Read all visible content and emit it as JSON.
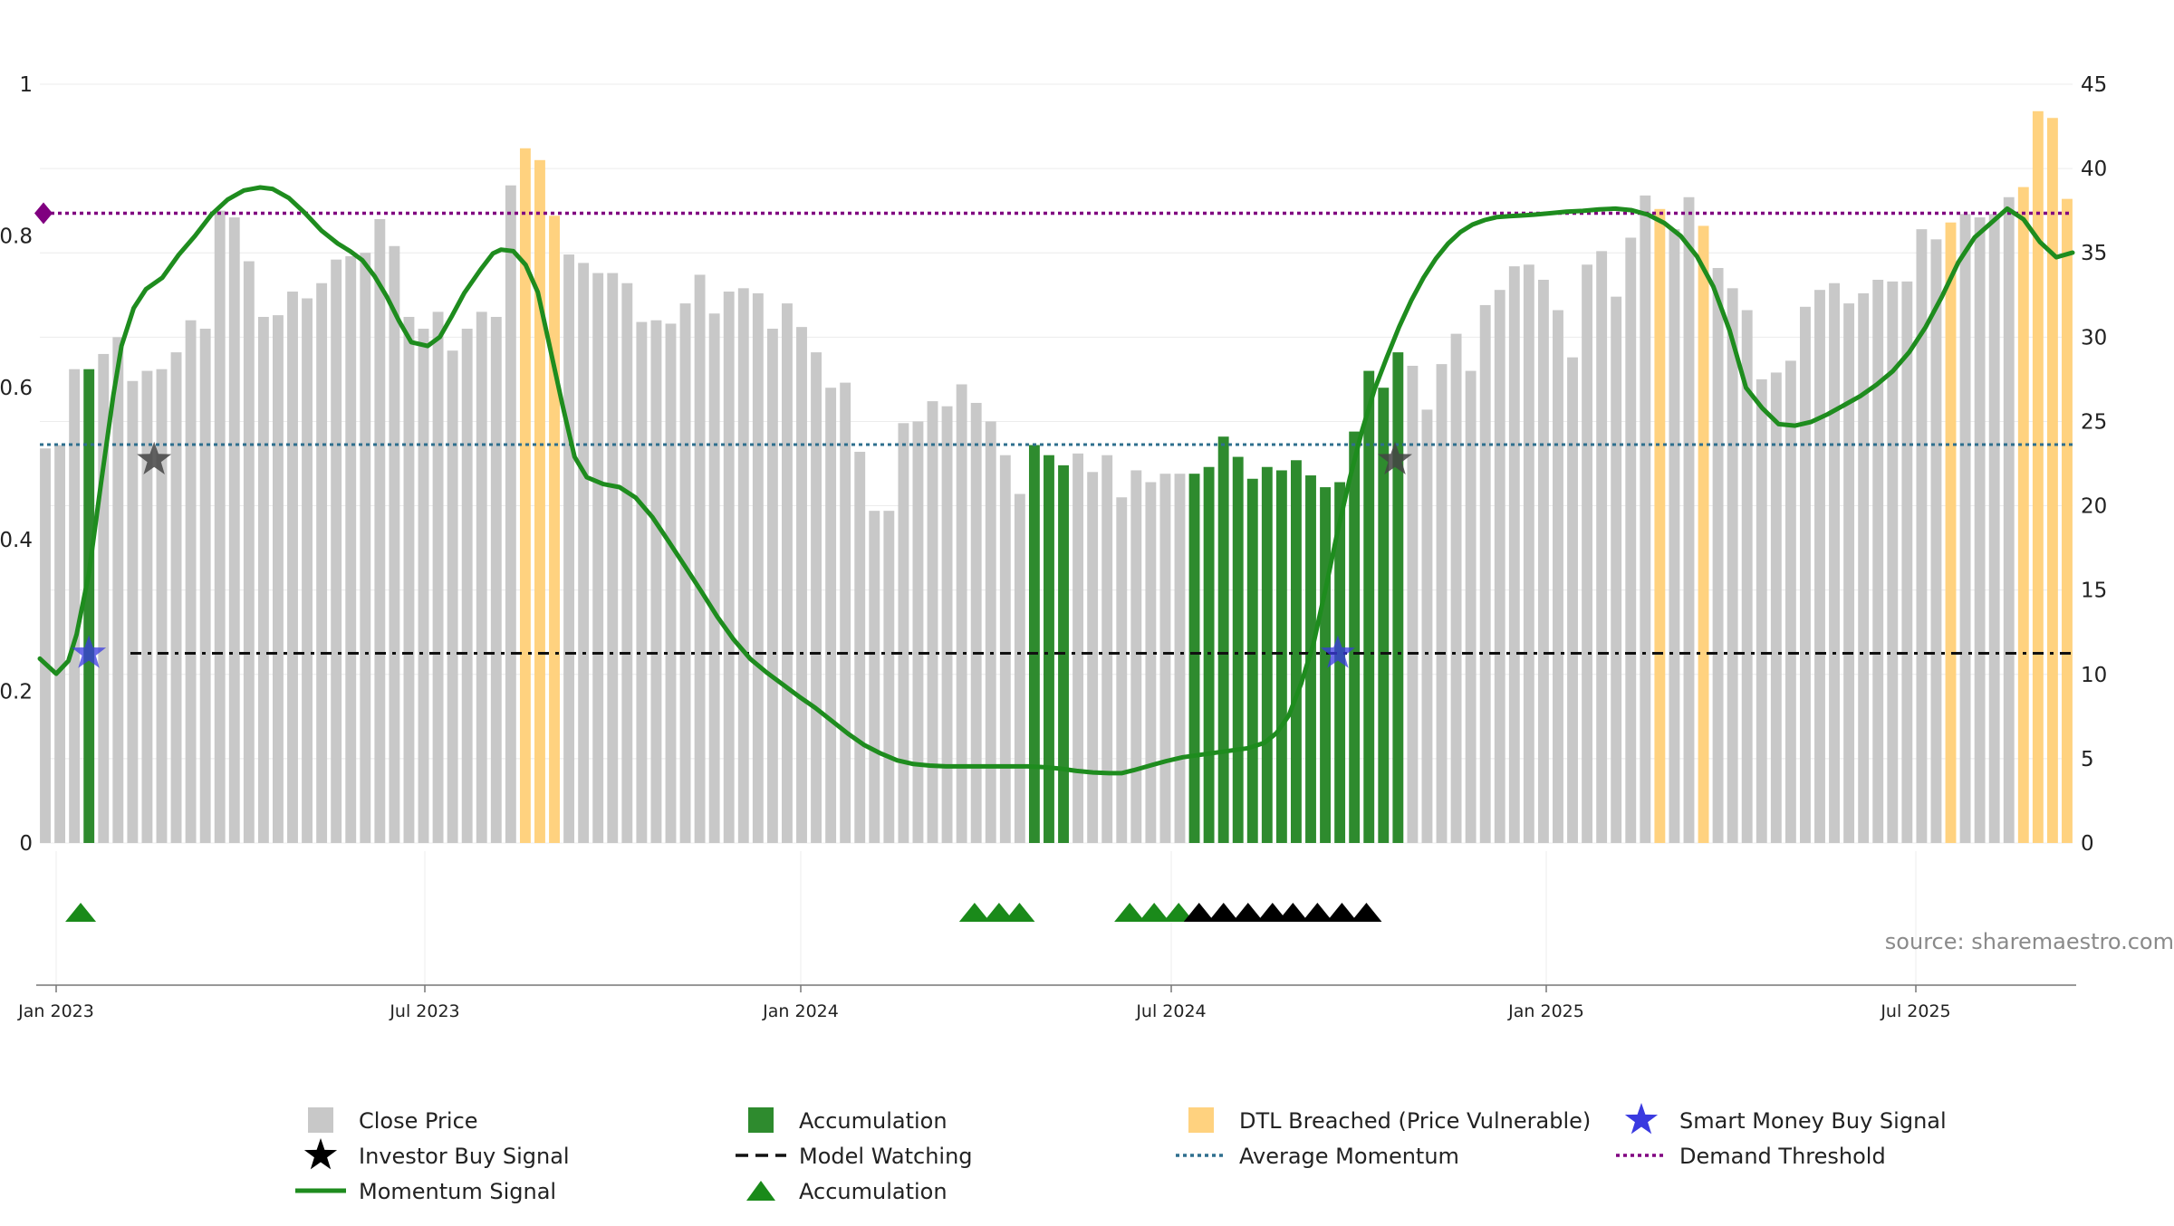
{
  "source_text": "source: sharemaestro.com",
  "colors": {
    "close": "#c8c8c8",
    "accumulation": "#2e8b2e",
    "dtl": "#ffd27f",
    "momentum": "#1e8c1e",
    "demand": "#800080",
    "average": "#2e6f8e",
    "model": "#111111",
    "smart_money": "#3a3ae0",
    "investor": "#444444",
    "triangle_green": "#1a8a1a",
    "triangle_black": "#000000"
  },
  "chart_data": {
    "type": "bar",
    "left_axis": {
      "ticks": [
        "0",
        "0.2",
        "0.4",
        "0.6",
        "0.8",
        "1"
      ],
      "range": [
        0,
        1
      ]
    },
    "right_axis": {
      "ticks": [
        "0",
        "5",
        "10",
        "15",
        "20",
        "25",
        "30",
        "35",
        "40",
        "45"
      ],
      "range": [
        0,
        45
      ]
    },
    "x_ticks": [
      "Jan 2023",
      "Jul 2023",
      "Jan 2024",
      "Jul 2024",
      "Jan 2025",
      "Jul 2025"
    ],
    "bar_values": [
      23.4,
      23.6,
      28.1,
      28.1,
      29.0,
      30.0,
      27.4,
      28.0,
      28.1,
      29.1,
      31.0,
      30.5,
      37.5,
      37.1,
      34.5,
      31.2,
      31.3,
      32.7,
      32.3,
      33.2,
      34.6,
      34.8,
      35.0,
      37.0,
      35.4,
      31.2,
      30.5,
      31.5,
      29.2,
      30.5,
      31.5,
      31.2,
      39.0,
      41.2,
      40.5,
      37.2,
      34.9,
      34.4,
      33.8,
      33.8,
      33.2,
      30.9,
      31.0,
      30.8,
      32.0,
      33.7,
      31.4,
      32.7,
      32.9,
      32.6,
      30.5,
      32.0,
      30.6,
      29.1,
      27.0,
      27.3,
      23.2,
      19.7,
      19.7,
      24.9,
      25.0,
      26.2,
      25.9,
      27.2,
      26.1,
      25.0,
      23.0,
      20.7,
      23.6,
      23.0,
      22.4,
      23.1,
      22.0,
      23.0,
      20.5,
      22.1,
      21.4,
      21.9,
      21.9,
      21.9,
      22.3,
      24.1,
      22.9,
      21.6,
      22.3,
      22.1,
      22.7,
      21.8,
      21.1,
      21.4,
      24.4,
      28.0,
      27.0,
      29.1,
      28.3,
      25.7,
      28.4,
      30.2,
      28.0,
      31.9,
      32.8,
      34.2,
      34.3,
      33.4,
      31.6,
      28.8,
      34.3,
      35.1,
      32.4,
      35.9,
      38.4,
      37.6,
      36.4,
      38.3,
      36.6,
      34.1,
      32.9,
      31.6,
      27.5,
      27.9,
      28.6,
      31.8,
      32.8,
      33.2,
      32.0,
      32.6,
      33.4,
      33.3,
      33.3,
      36.4,
      35.8,
      36.8,
      37.3,
      37.1,
      37.3,
      38.3,
      38.9,
      43.4,
      43.0,
      38.2
    ],
    "bar_category_by_index": {
      "accumulation": [
        3,
        68,
        69,
        70,
        79,
        80,
        81,
        82,
        83,
        84,
        85,
        86,
        87,
        88,
        89,
        90,
        91,
        92,
        93
      ],
      "dtl_breached": [
        33,
        34,
        35,
        111,
        114,
        131,
        136,
        137,
        138,
        139,
        140
      ]
    },
    "momentum": [
      [
        0,
        0.243
      ],
      [
        4,
        0.223
      ],
      [
        7,
        0.24
      ],
      [
        9,
        0.275
      ],
      [
        12,
        0.355
      ],
      [
        15,
        0.475
      ],
      [
        18,
        0.59
      ],
      [
        20,
        0.655
      ],
      [
        23,
        0.705
      ],
      [
        26,
        0.73
      ],
      [
        30,
        0.745
      ],
      [
        34,
        0.775
      ],
      [
        38,
        0.8
      ],
      [
        42,
        0.828
      ],
      [
        46,
        0.848
      ],
      [
        50,
        0.86
      ],
      [
        54,
        0.864
      ],
      [
        57,
        0.862
      ],
      [
        61,
        0.85
      ],
      [
        65,
        0.83
      ],
      [
        69,
        0.807
      ],
      [
        73,
        0.79
      ],
      [
        76,
        0.78
      ],
      [
        79,
        0.768
      ],
      [
        82,
        0.747
      ],
      [
        85,
        0.72
      ],
      [
        88,
        0.688
      ],
      [
        91,
        0.66
      ],
      [
        95,
        0.655
      ],
      [
        98,
        0.667
      ],
      [
        101,
        0.695
      ],
      [
        104,
        0.725
      ],
      [
        108,
        0.756
      ],
      [
        111,
        0.777
      ],
      [
        113,
        0.782
      ],
      [
        116,
        0.78
      ],
      [
        119,
        0.762
      ],
      [
        122,
        0.726
      ],
      [
        125,
        0.652
      ],
      [
        128,
        0.578
      ],
      [
        131,
        0.509
      ],
      [
        134,
        0.482
      ],
      [
        138,
        0.473
      ],
      [
        142,
        0.469
      ],
      [
        146,
        0.455
      ],
      [
        150,
        0.43
      ],
      [
        154,
        0.398
      ],
      [
        158,
        0.365
      ],
      [
        162,
        0.332
      ],
      [
        166,
        0.298
      ],
      [
        170,
        0.268
      ],
      [
        174,
        0.243
      ],
      [
        178,
        0.225
      ],
      [
        182,
        0.209
      ],
      [
        186,
        0.193
      ],
      [
        190,
        0.178
      ],
      [
        194,
        0.161
      ],
      [
        198,
        0.144
      ],
      [
        202,
        0.129
      ],
      [
        206,
        0.118
      ],
      [
        210,
        0.109
      ],
      [
        214,
        0.104
      ],
      [
        218,
        0.102
      ],
      [
        222,
        0.101
      ],
      [
        226,
        0.101
      ],
      [
        230,
        0.101
      ],
      [
        234,
        0.101
      ],
      [
        238,
        0.101
      ],
      [
        242,
        0.101
      ],
      [
        246,
        0.1
      ],
      [
        250,
        0.098
      ],
      [
        254,
        0.095
      ],
      [
        258,
        0.093
      ],
      [
        262,
        0.092
      ],
      [
        265,
        0.092
      ],
      [
        268,
        0.096
      ],
      [
        272,
        0.102
      ],
      [
        276,
        0.108
      ],
      [
        280,
        0.113
      ],
      [
        284,
        0.116
      ],
      [
        288,
        0.119
      ],
      [
        292,
        0.122
      ],
      [
        296,
        0.125
      ],
      [
        300,
        0.132
      ],
      [
        303,
        0.145
      ],
      [
        306,
        0.168
      ],
      [
        309,
        0.21
      ],
      [
        312,
        0.262
      ],
      [
        315,
        0.335
      ],
      [
        318,
        0.412
      ],
      [
        321,
        0.482
      ],
      [
        324,
        0.545
      ],
      [
        327,
        0.598
      ],
      [
        330,
        0.64
      ],
      [
        333,
        0.68
      ],
      [
        336,
        0.715
      ],
      [
        339,
        0.745
      ],
      [
        342,
        0.77
      ],
      [
        345,
        0.79
      ],
      [
        348,
        0.805
      ],
      [
        351,
        0.815
      ],
      [
        354,
        0.821
      ],
      [
        357,
        0.825
      ],
      [
        360,
        0.826
      ],
      [
        363,
        0.827
      ],
      [
        366,
        0.828
      ],
      [
        370,
        0.83
      ],
      [
        374,
        0.832
      ],
      [
        378,
        0.833
      ],
      [
        382,
        0.835
      ],
      [
        386,
        0.836
      ],
      [
        390,
        0.834
      ],
      [
        394,
        0.828
      ],
      [
        398,
        0.817
      ],
      [
        402,
        0.8
      ],
      [
        406,
        0.773
      ],
      [
        410,
        0.733
      ],
      [
        414,
        0.675
      ],
      [
        418,
        0.6
      ],
      [
        422,
        0.573
      ],
      [
        426,
        0.552
      ],
      [
        430,
        0.55
      ],
      [
        434,
        0.555
      ],
      [
        438,
        0.565
      ],
      [
        442,
        0.577
      ],
      [
        446,
        0.589
      ],
      [
        450,
        0.604
      ],
      [
        454,
        0.622
      ],
      [
        458,
        0.647
      ],
      [
        462,
        0.68
      ],
      [
        466,
        0.72
      ],
      [
        470,
        0.765
      ],
      [
        474,
        0.798
      ],
      [
        478,
        0.817
      ],
      [
        482,
        0.836
      ],
      [
        486,
        0.822
      ],
      [
        490,
        0.792
      ],
      [
        494,
        0.772
      ],
      [
        498,
        0.778
      ]
    ],
    "momentum_x_span": [
      0,
      498
    ],
    "demand_threshold": 0.83,
    "average_momentum": 0.525,
    "model_watching": 0.25,
    "smart_money_signals": [
      {
        "x": 12,
        "y": 0.25
      },
      {
        "x": 318,
        "y": 0.25
      }
    ],
    "investor_signals": [
      {
        "x": 28,
        "y": 0.505
      },
      {
        "x": 332,
        "y": 0.505
      }
    ],
    "triangles_green": [
      10,
      229,
      235,
      240,
      267,
      273,
      279
    ],
    "triangles_black": [
      284,
      290,
      296,
      302,
      307,
      313,
      319,
      325
    ],
    "triangle_x_span": [
      0,
      498
    ],
    "legend": [
      {
        "label": "Close Price",
        "symbol": "square",
        "color": "close"
      },
      {
        "label": "Accumulation",
        "symbol": "square",
        "color": "accumulation"
      },
      {
        "label": "DTL Breached (Price Vulnerable)",
        "symbol": "square",
        "color": "dtl"
      },
      {
        "label": "Smart Money Buy Signal",
        "symbol": "star",
        "color": "smart_money"
      },
      {
        "label": "Investor Buy Signal",
        "symbol": "star",
        "color": "triangle_black"
      },
      {
        "label": "Model Watching",
        "symbol": "dash",
        "color": "model"
      },
      {
        "label": "Average Momentum",
        "symbol": "dot",
        "color": "average"
      },
      {
        "label": "Demand Threshold",
        "symbol": "dot",
        "color": "demand"
      },
      {
        "label": "Momentum Signal",
        "symbol": "line",
        "color": "momentum"
      },
      {
        "label": "Accumulation",
        "symbol": "triangle",
        "color": "triangle_green"
      }
    ]
  }
}
